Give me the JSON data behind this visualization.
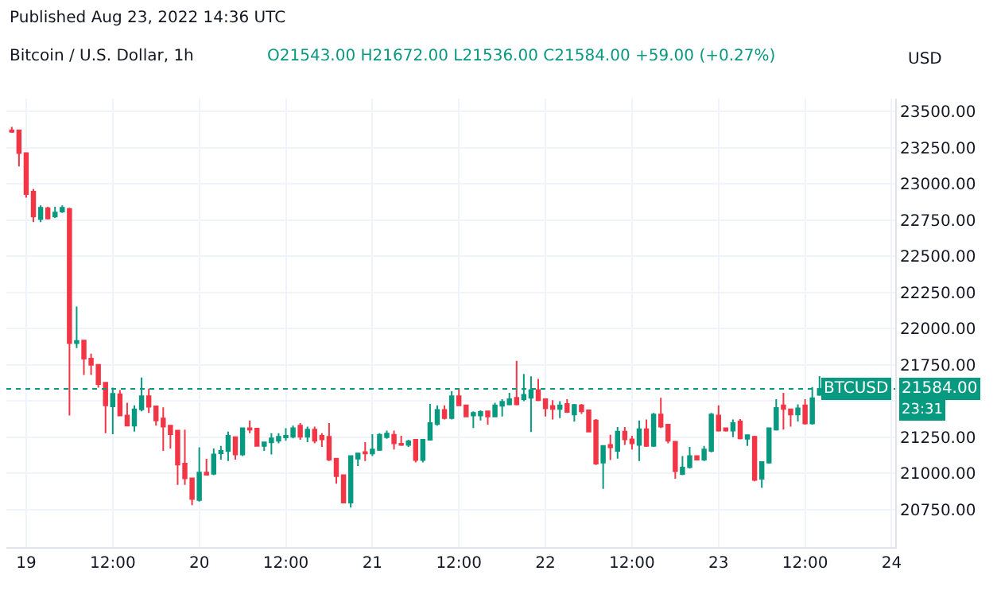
{
  "chart_data": {
    "type": "candlestick",
    "title": "Bitcoin / U.S. Dollar, 1h",
    "subtitle": "O21543.00 H21672.00 L21536.00 C21584.00 +59.00 (+0.27%)",
    "ylabel": "USD",
    "annotations": [
      "Published Aug 23, 2022 14:36 UTC",
      "BTCUSD",
      "23:31"
    ],
    "x": [
      "2022-08-18T22:00",
      "2022-08-18T23:00",
      "2022-08-19T00:00",
      "2022-08-19T01:00",
      "2022-08-19T02:00",
      "2022-08-19T03:00",
      "2022-08-19T04:00",
      "2022-08-19T05:00",
      "2022-08-19T06:00",
      "2022-08-19T07:00",
      "2022-08-19T08:00",
      "2022-08-19T09:00",
      "2022-08-19T10:00",
      "2022-08-19T11:00",
      "2022-08-19T12:00",
      "2022-08-19T13:00",
      "2022-08-19T14:00",
      "2022-08-19T15:00",
      "2022-08-19T16:00",
      "2022-08-19T17:00",
      "2022-08-19T18:00",
      "2022-08-19T19:00",
      "2022-08-19T20:00",
      "2022-08-19T21:00",
      "2022-08-19T22:00",
      "2022-08-19T23:00",
      "2022-08-20T00:00",
      "2022-08-20T01:00",
      "2022-08-20T02:00",
      "2022-08-20T03:00",
      "2022-08-20T04:00",
      "2022-08-20T05:00",
      "2022-08-20T06:00",
      "2022-08-20T07:00",
      "2022-08-20T08:00",
      "2022-08-20T09:00",
      "2022-08-20T10:00",
      "2022-08-20T11:00",
      "2022-08-20T12:00",
      "2022-08-20T13:00",
      "2022-08-20T14:00",
      "2022-08-20T15:00",
      "2022-08-20T16:00",
      "2022-08-20T17:00",
      "2022-08-20T18:00",
      "2022-08-20T19:00",
      "2022-08-20T20:00",
      "2022-08-20T21:00",
      "2022-08-20T22:00",
      "2022-08-20T23:00",
      "2022-08-21T00:00",
      "2022-08-21T01:00",
      "2022-08-21T02:00",
      "2022-08-21T03:00",
      "2022-08-21T04:00",
      "2022-08-21T05:00",
      "2022-08-21T06:00",
      "2022-08-21T07:00",
      "2022-08-21T08:00",
      "2022-08-21T09:00",
      "2022-08-21T10:00",
      "2022-08-21T11:00",
      "2022-08-21T12:00",
      "2022-08-21T13:00",
      "2022-08-21T14:00",
      "2022-08-21T15:00",
      "2022-08-21T16:00",
      "2022-08-21T17:00",
      "2022-08-21T18:00",
      "2022-08-21T19:00",
      "2022-08-21T20:00",
      "2022-08-21T21:00",
      "2022-08-21T22:00",
      "2022-08-21T23:00",
      "2022-08-22T00:00",
      "2022-08-22T01:00",
      "2022-08-22T02:00",
      "2022-08-22T03:00",
      "2022-08-22T04:00",
      "2022-08-22T05:00",
      "2022-08-22T06:00",
      "2022-08-22T07:00",
      "2022-08-22T08:00",
      "2022-08-22T09:00",
      "2022-08-22T10:00",
      "2022-08-22T11:00",
      "2022-08-22T12:00",
      "2022-08-22T13:00",
      "2022-08-22T14:00",
      "2022-08-22T15:00",
      "2022-08-22T16:00",
      "2022-08-22T17:00",
      "2022-08-22T18:00",
      "2022-08-22T19:00",
      "2022-08-22T20:00",
      "2022-08-22T21:00",
      "2022-08-22T22:00",
      "2022-08-22T23:00",
      "2022-08-23T00:00",
      "2022-08-23T01:00",
      "2022-08-23T02:00",
      "2022-08-23T03:00",
      "2022-08-23T04:00",
      "2022-08-23T05:00",
      "2022-08-23T06:00",
      "2022-08-23T07:00",
      "2022-08-23T08:00",
      "2022-08-23T09:00",
      "2022-08-23T10:00",
      "2022-08-23T11:00",
      "2022-08-23T12:00",
      "2022-08-23T13:00",
      "2022-08-23T14:00"
    ],
    "ohlc": [
      [
        23370,
        23395,
        23353,
        23360
      ],
      [
        23370,
        23370,
        23122,
        23213
      ],
      [
        23213,
        23213,
        22905,
        22930
      ],
      [
        22947,
        22965,
        22737,
        22775
      ],
      [
        22758,
        22852,
        22737,
        22835
      ],
      [
        22832,
        22842,
        22755,
        22762
      ],
      [
        22775,
        22842,
        22765,
        22803
      ],
      [
        22810,
        22852,
        22800,
        22835
      ],
      [
        22828,
        22835,
        21400,
        21900
      ],
      [
        21900,
        22152,
        21866,
        21915
      ],
      [
        21918,
        21918,
        21680,
        21792
      ],
      [
        21792,
        21827,
        21680,
        21750
      ],
      [
        21750,
        21750,
        21592,
        21617
      ],
      [
        21627,
        21627,
        21277,
        21470
      ],
      [
        21463,
        21592,
        21270,
        21550
      ],
      [
        21547,
        21575,
        21400,
        21400
      ],
      [
        21400,
        21487,
        21330,
        21330
      ],
      [
        21330,
        21470,
        21288,
        21442
      ],
      [
        21442,
        21662,
        21428,
        21533
      ],
      [
        21533,
        21585,
        21418,
        21460
      ],
      [
        21463,
        21463,
        21330,
        21365
      ],
      [
        21379,
        21456,
        21155,
        21323
      ],
      [
        21330,
        21330,
        21172,
        21270
      ],
      [
        21295,
        21295,
        20920,
        21060
      ],
      [
        21067,
        21302,
        20920,
        20966
      ],
      [
        20966,
        20966,
        20780,
        20823
      ],
      [
        20816,
        21180,
        20805,
        21005
      ],
      [
        21005,
        21100,
        20990,
        20990
      ],
      [
        20997,
        21172,
        20987,
        21130
      ],
      [
        21138,
        21190,
        21095,
        21155
      ],
      [
        21155,
        21288,
        21085,
        21260
      ],
      [
        21250,
        21250,
        21095,
        21130
      ],
      [
        21130,
        21312,
        21120,
        21312
      ],
      [
        21312,
        21365,
        21277,
        21302
      ],
      [
        21309,
        21309,
        21190,
        21190
      ],
      [
        21190,
        21214,
        21155,
        21214
      ],
      [
        21214,
        21277,
        21130,
        21242
      ],
      [
        21225,
        21277,
        21207,
        21253
      ],
      [
        21249,
        21312,
        21225,
        21260
      ],
      [
        21253,
        21330,
        21242,
        21312
      ],
      [
        21330,
        21347,
        21232,
        21253
      ],
      [
        21253,
        21323,
        21215,
        21302
      ],
      [
        21302,
        21323,
        21208,
        21225
      ],
      [
        21260,
        21277,
        21183,
        21235
      ],
      [
        21253,
        21347,
        21085,
        21095
      ],
      [
        21102,
        21102,
        20928,
        20980
      ],
      [
        20987,
        20987,
        20798,
        20798
      ],
      [
        20798,
        21120,
        20763,
        21120
      ],
      [
        21102,
        21137,
        21050,
        21137
      ],
      [
        21147,
        21215,
        21085,
        21137
      ],
      [
        21137,
        21270,
        21120,
        21165
      ],
      [
        21162,
        21277,
        21155,
        21267
      ],
      [
        21250,
        21295,
        21239,
        21274
      ],
      [
        21267,
        21295,
        21165,
        21207
      ],
      [
        21204,
        21260,
        21190,
        21197
      ],
      [
        21197,
        21232,
        21183,
        21221
      ],
      [
        21232,
        21232,
        21075,
        21092
      ],
      [
        21092,
        21232,
        21075,
        21232
      ],
      [
        21232,
        21480,
        21232,
        21347
      ],
      [
        21340,
        21470,
        21330,
        21438
      ],
      [
        21438,
        21470,
        21372,
        21382
      ],
      [
        21382,
        21568,
        21372,
        21533
      ],
      [
        21533,
        21585,
        21470,
        21470
      ],
      [
        21470,
        21470,
        21393,
        21393
      ],
      [
        21400,
        21428,
        21313,
        21417
      ],
      [
        21400,
        21435,
        21365,
        21424
      ],
      [
        21428,
        21428,
        21337,
        21393
      ],
      [
        21393,
        21487,
        21390,
        21470
      ],
      [
        21467,
        21512,
        21393,
        21495
      ],
      [
        21477,
        21557,
        21470,
        21512
      ],
      [
        21522,
        21778,
        21470,
        21477
      ],
      [
        21512,
        21687,
        21498,
        21543
      ],
      [
        21522,
        21670,
        21285,
        21575
      ],
      [
        21575,
        21652,
        21498,
        21505
      ],
      [
        21512,
        21512,
        21393,
        21449
      ],
      [
        21466,
        21505,
        21372,
        21445
      ],
      [
        21445,
        21498,
        21382,
        21470
      ],
      [
        21480,
        21512,
        21417,
        21424
      ],
      [
        21407,
        21480,
        21358,
        21473
      ],
      [
        21470,
        21480,
        21410,
        21428
      ],
      [
        21435,
        21435,
        21288,
        21288
      ],
      [
        21365,
        21375,
        21057,
        21067
      ],
      [
        21074,
        21190,
        20893,
        21190
      ],
      [
        21197,
        21267,
        21092,
        21180
      ],
      [
        21155,
        21320,
        21102,
        21288
      ],
      [
        21288,
        21320,
        21197,
        21235
      ],
      [
        21235,
        21260,
        21165,
        21207
      ],
      [
        21197,
        21365,
        21085,
        21305
      ],
      [
        21305,
        21372,
        21183,
        21190
      ],
      [
        21190,
        21417,
        21183,
        21407
      ],
      [
        21407,
        21522,
        21313,
        21323
      ],
      [
        21337,
        21337,
        21208,
        21225
      ],
      [
        21218,
        21218,
        20963,
        21015
      ],
      [
        20995,
        21120,
        20987,
        21040
      ],
      [
        21043,
        21183,
        21033,
        21120
      ],
      [
        21120,
        21120,
        21095,
        21095
      ],
      [
        21095,
        21190,
        21085,
        21165
      ],
      [
        21155,
        21417,
        21145,
        21407
      ],
      [
        21400,
        21470,
        21288,
        21295
      ],
      [
        21312,
        21312,
        21288,
        21295
      ],
      [
        21295,
        21372,
        21250,
        21347
      ],
      [
        21358,
        21375,
        21235,
        21242
      ],
      [
        21239,
        21267,
        21190,
        21263
      ],
      [
        21253,
        21260,
        20945,
        20955
      ],
      [
        20962,
        21078,
        20900,
        21078
      ],
      [
        21074,
        21312,
        21067,
        21312
      ],
      [
        21302,
        21512,
        21295,
        21452
      ],
      [
        21470,
        21557,
        21302,
        21445
      ],
      [
        21442,
        21442,
        21323,
        21407
      ],
      [
        21407,
        21477,
        21358,
        21449
      ],
      [
        21470,
        21512,
        21337,
        21344
      ],
      [
        21344,
        21596,
        21337,
        21519
      ],
      [
        21543,
        21672,
        21536,
        21584
      ]
    ],
    "colors": [
      "#f23645",
      "#f23645",
      "#f23645",
      "#f23645",
      "#089981",
      "#f23645",
      "#089981",
      "#089981",
      "#f23645",
      "#089981",
      "#f23645",
      "#f23645",
      "#f23645",
      "#f23645",
      "#089981",
      "#f23645",
      "#f23645",
      "#089981",
      "#089981",
      "#f23645",
      "#f23645",
      "#f23645",
      "#f23645",
      "#f23645",
      "#f23645",
      "#f23645",
      "#089981",
      "#f23645",
      "#089981",
      "#089981",
      "#089981",
      "#f23645",
      "#089981",
      "#f23645",
      "#f23645",
      "#089981",
      "#089981",
      "#089981",
      "#089981",
      "#089981",
      "#f23645",
      "#089981",
      "#f23645",
      "#f23645",
      "#f23645",
      "#f23645",
      "#f23645",
      "#089981",
      "#089981",
      "#f23645",
      "#089981",
      "#089981",
      "#089981",
      "#f23645",
      "#f23645",
      "#089981",
      "#f23645",
      "#089981",
      "#089981",
      "#089981",
      "#f23645",
      "#089981",
      "#f23645",
      "#f23645",
      "#089981",
      "#089981",
      "#f23645",
      "#089981",
      "#089981",
      "#089981",
      "#f23645",
      "#089981",
      "#089981",
      "#f23645",
      "#f23645",
      "#f23645",
      "#089981",
      "#f23645",
      "#089981",
      "#f23645",
      "#f23645",
      "#f23645",
      "#089981",
      "#f23645",
      "#089981",
      "#f23645",
      "#f23645",
      "#089981",
      "#f23645",
      "#089981",
      "#f23645",
      "#f23645",
      "#f23645",
      "#089981",
      "#089981",
      "#f23645",
      "#089981",
      "#089981",
      "#f23645",
      "#f23645",
      "#089981",
      "#f23645",
      "#089981",
      "#f23645",
      "#089981",
      "#089981",
      "#089981",
      "#f23645",
      "#f23645",
      "#089981",
      "#f23645",
      "#089981",
      "#089981"
    ],
    "xlim": [
      "2022-08-18T21:15",
      "2022-08-24T00:30"
    ],
    "xticks": [
      {
        "value": "2022-08-19T00:00",
        "label": "19"
      },
      {
        "value": "2022-08-19T12:00",
        "label": "12:00"
      },
      {
        "value": "2022-08-20T00:00",
        "label": "20"
      },
      {
        "value": "2022-08-20T12:00",
        "label": "12:00"
      },
      {
        "value": "2022-08-21T00:00",
        "label": "21"
      },
      {
        "value": "2022-08-21T12:00",
        "label": "12:00"
      },
      {
        "value": "2022-08-22T00:00",
        "label": "22"
      },
      {
        "value": "2022-08-22T12:00",
        "label": "12:00"
      },
      {
        "value": "2022-08-23T00:00",
        "label": "23"
      },
      {
        "value": "2022-08-23T12:00",
        "label": "12:00"
      },
      {
        "value": "2022-08-24T00:00",
        "label": "24"
      }
    ],
    "ylim": [
      20490,
      23590
    ],
    "yticks": [
      {
        "value": 20750,
        "label": "20750.00"
      },
      {
        "value": 21000,
        "label": "21000.00"
      },
      {
        "value": 21250,
        "label": "21250.00"
      },
      {
        "value": 21500,
        "label": null
      },
      {
        "value": 21750,
        "label": "21750.00"
      },
      {
        "value": 22000,
        "label": "22000.00"
      },
      {
        "value": 22250,
        "label": "22250.00"
      },
      {
        "value": 22500,
        "label": "22500.00"
      },
      {
        "value": 22750,
        "label": "22750.00"
      },
      {
        "value": 23000,
        "label": "23000.00"
      },
      {
        "value": 23250,
        "label": "23250.00"
      },
      {
        "value": 23500,
        "label": "23500.00"
      }
    ],
    "ref_lines": [
      {
        "axis": "y",
        "value": 21584,
        "label": "21584.00",
        "color": "#089981",
        "line_style": "dotted"
      }
    ],
    "grid": true
  }
}
